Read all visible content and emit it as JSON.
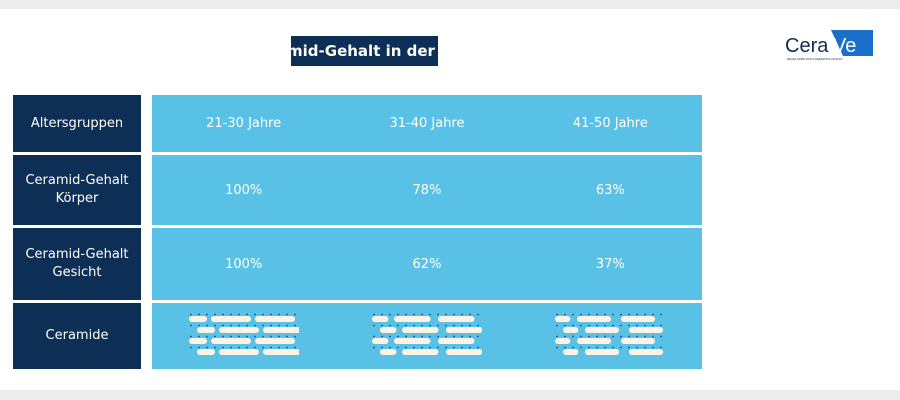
{
  "title": "Ceramid-Gehalt in der Haut",
  "logo": {
    "brand": "CeraVe",
    "tagline": "DEVELOPED WITH DERMATOLOGISTS",
    "color": "#1a6fc9"
  },
  "colors": {
    "navy": "#0e2f55",
    "light_blue": "#5ac1e6"
  },
  "table": {
    "rows": [
      {
        "label": "Altersgruppen",
        "values": [
          "21-30 Jahre",
          "31-40 Jahre",
          "41-50 Jahre"
        ]
      },
      {
        "label": "Ceramid-Gehalt Körper",
        "values": [
          "100%",
          "78%",
          "63%"
        ]
      },
      {
        "label": "Ceramid-Gehalt Gesicht",
        "values": [
          "100%",
          "62%",
          "37%"
        ]
      },
      {
        "label": "Ceramide",
        "values": []
      }
    ],
    "ceramide_levels": [
      100,
      78,
      63
    ]
  }
}
